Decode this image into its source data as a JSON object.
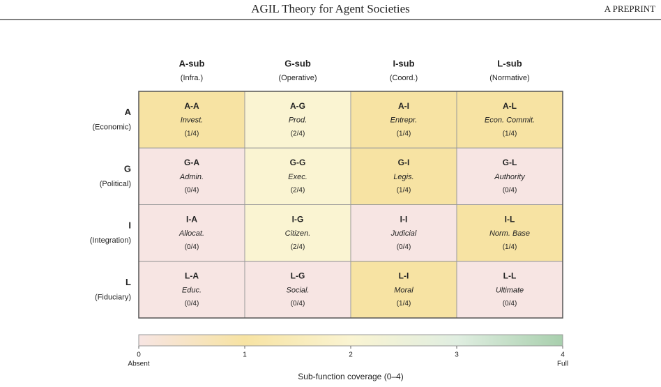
{
  "header": {
    "title": "AGIL Theory for Agent Societies",
    "right": "A PREPRINT"
  },
  "chart_data": {
    "type": "heatmap",
    "columns": [
      {
        "label": "A-sub",
        "sublabel": "(Infra.)"
      },
      {
        "label": "G-sub",
        "sublabel": "(Operative)"
      },
      {
        "label": "I-sub",
        "sublabel": "(Coord.)"
      },
      {
        "label": "L-sub",
        "sublabel": "(Normative)"
      }
    ],
    "rows": [
      {
        "label": "A",
        "sublabel": "(Economic)"
      },
      {
        "label": "G",
        "sublabel": "(Political)"
      },
      {
        "label": "I",
        "sublabel": "(Integration)"
      },
      {
        "label": "L",
        "sublabel": "(Fiduciary)"
      }
    ],
    "codes": [
      [
        "A-A",
        "A-G",
        "A-I",
        "A-L"
      ],
      [
        "G-A",
        "G-G",
        "G-I",
        "G-L"
      ],
      [
        "I-A",
        "I-G",
        "I-I",
        "I-L"
      ],
      [
        "L-A",
        "L-G",
        "L-I",
        "L-L"
      ]
    ],
    "names": [
      [
        "Invest.",
        "Prod.",
        "Entrepr.",
        "Econ. Commit."
      ],
      [
        "Admin.",
        "Exec.",
        "Legis.",
        "Authority"
      ],
      [
        "Allocat.",
        "Citizen.",
        "Judicial",
        "Norm. Base"
      ],
      [
        "Educ.",
        "Social.",
        "Moral",
        "Ultimate"
      ]
    ],
    "values": [
      [
        1,
        2,
        1,
        1
      ],
      [
        0,
        2,
        1,
        0
      ],
      [
        0,
        2,
        0,
        1
      ],
      [
        0,
        0,
        1,
        0
      ]
    ],
    "value_labels": [
      [
        "(1/4)",
        "(2/4)",
        "(1/4)",
        "(1/4)"
      ],
      [
        "(0/4)",
        "(2/4)",
        "(1/4)",
        "(0/4)"
      ],
      [
        "(0/4)",
        "(2/4)",
        "(0/4)",
        "(1/4)"
      ],
      [
        "(0/4)",
        "(0/4)",
        "(1/4)",
        "(0/4)"
      ]
    ],
    "colorbar": {
      "lim": [
        0,
        4
      ],
      "ticks": [
        0,
        1,
        2,
        3,
        4
      ],
      "colors": [
        "#f7e5e3",
        "#f7e3a3",
        "#faf4d2",
        "#e0eee1",
        "#a8cfad"
      ],
      "min_label": "Absent",
      "max_label": "Full",
      "title": "Sub-function coverage (0–4)"
    }
  }
}
